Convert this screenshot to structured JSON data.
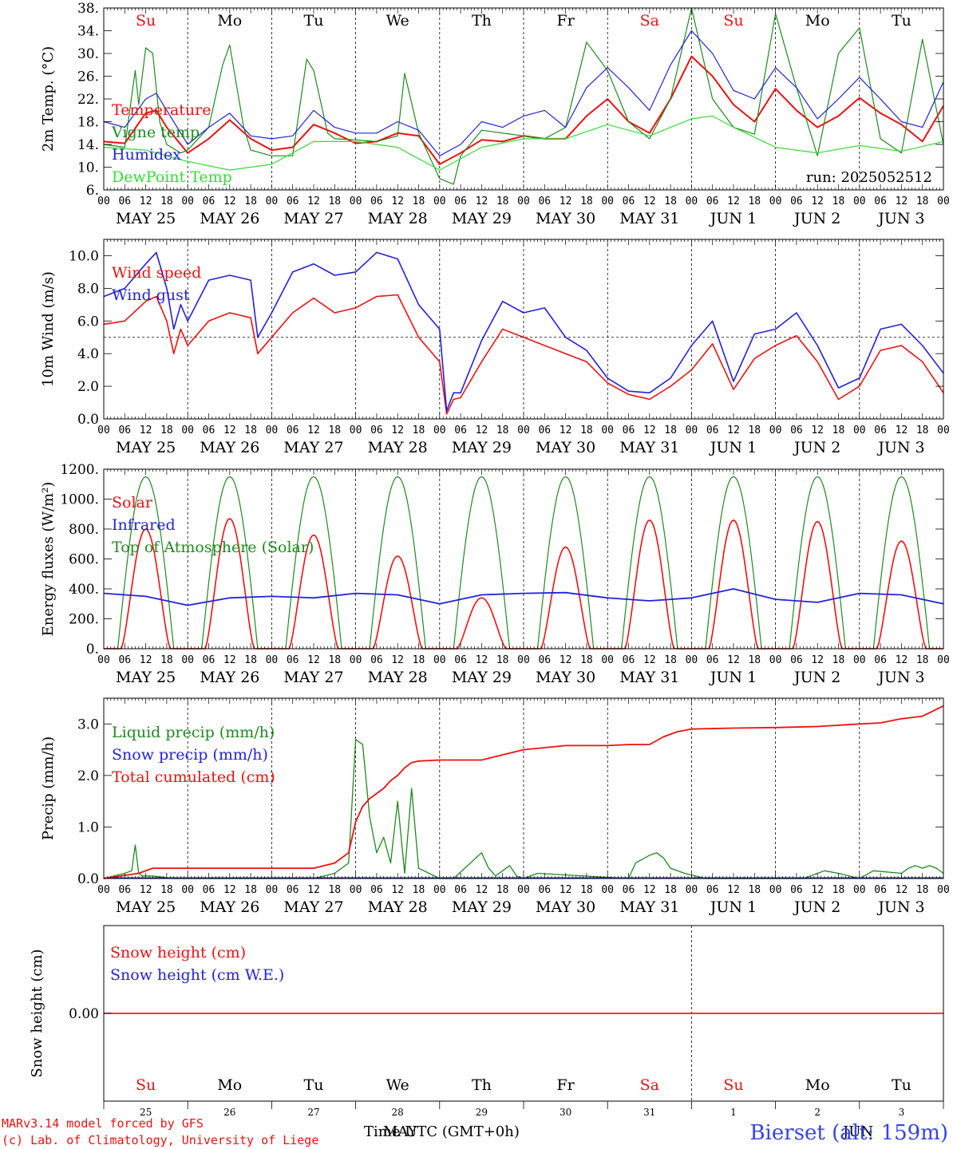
{
  "colors": {
    "red": "#ee1111",
    "green": "#1e8a1e",
    "blue": "#2222dd",
    "lightgreen": "#33dd33",
    "axis": "#000000"
  },
  "hour_labels": [
    "00",
    "06",
    "12",
    "18"
  ],
  "final_hour_label": "00",
  "day_labels": [
    "MAY 25",
    "MAY 26",
    "MAY 27",
    "MAY 28",
    "MAY 29",
    "MAY 30",
    "MAY 31",
    "JUN  1",
    "JUN  2",
    "JUN  3"
  ],
  "weekdays": [
    {
      "label": "Su",
      "color": "red"
    },
    {
      "label": "Mo",
      "color": "black"
    },
    {
      "label": "Tu",
      "color": "black"
    },
    {
      "label": "We",
      "color": "black"
    },
    {
      "label": "Th",
      "color": "black"
    },
    {
      "label": "Fr",
      "color": "black"
    },
    {
      "label": "Sa",
      "color": "red"
    },
    {
      "label": "Su",
      "color": "red"
    },
    {
      "label": "Mo",
      "color": "black"
    },
    {
      "label": "Tu",
      "color": "black"
    }
  ],
  "day_numbers": [
    "25",
    "26",
    "27",
    "28",
    "29",
    "30",
    "31",
    "1",
    "2",
    "3"
  ],
  "footer": {
    "model_line": "MARv3.14 model forced by GFS",
    "credit_line": "(c) Lab. of Climatology, University of Liege",
    "time_axis_label": "Time UTC (GMT+0h)",
    "month_overlay_1": "MAY",
    "month_overlay_2": "JUN",
    "station": "Bierset (alt: 159m)"
  },
  "chart_data": [
    {
      "type": "line",
      "ylabel": "2m Temp. (°C)",
      "ylim": [
        6,
        38
      ],
      "yticks": [
        "6.",
        "10.",
        "14.",
        "18.",
        "22.",
        "26.",
        "30.",
        "34.",
        "38."
      ],
      "grid": "vertical dashed at midnight",
      "annotation": "run: 2025052512",
      "x_units": "hours since 2025-05-25 00 UTC",
      "series": [
        {
          "name": "Temperature",
          "color": "red",
          "x": [
            0,
            6,
            12,
            15,
            18,
            24,
            30,
            36,
            42,
            48,
            54,
            60,
            66,
            72,
            78,
            84,
            90,
            96,
            102,
            108,
            114,
            120,
            126,
            132,
            138,
            144,
            150,
            156,
            162,
            168,
            174,
            180,
            186,
            192,
            198,
            204,
            210,
            216,
            222,
            228,
            234,
            240
          ],
          "y": [
            14.5,
            14.2,
            19.5,
            20,
            17,
            12.5,
            15,
            18.3,
            15,
            13,
            13.5,
            17.5,
            16,
            14.2,
            14.5,
            16,
            15.5,
            10.5,
            12.5,
            14.8,
            14.5,
            15.5,
            15,
            15,
            19,
            22,
            18,
            16,
            22,
            29.5,
            26,
            21,
            18,
            23.8,
            20,
            17,
            19,
            22.2,
            19.5,
            17.5,
            14.5,
            20.8
          ]
        },
        {
          "name": "Vigne temp",
          "color": "green",
          "x": [
            0,
            6,
            9,
            10,
            12,
            14,
            16,
            18,
            22,
            24,
            30,
            34,
            36,
            40,
            42,
            48,
            54,
            58,
            60,
            64,
            66,
            72,
            78,
            84,
            86,
            90,
            96,
            100,
            102,
            108,
            114,
            120,
            126,
            132,
            138,
            144,
            150,
            156,
            162,
            168,
            174,
            180,
            186,
            192,
            198,
            204,
            210,
            216,
            222,
            228,
            234,
            240
          ],
          "y": [
            14,
            13.5,
            27,
            21,
            31,
            30,
            18,
            14,
            12.5,
            13,
            17,
            28,
            31.5,
            17,
            13,
            12,
            12,
            29,
            27,
            16,
            15,
            14.8,
            14.5,
            15.5,
            26.5,
            16,
            8,
            7,
            12,
            16.5,
            16,
            15.5,
            15,
            17,
            32,
            27,
            18,
            15,
            22,
            38,
            22,
            17,
            15.8,
            37,
            24,
            12,
            30,
            34.5,
            15,
            12.5,
            32.5,
            14
          ]
        },
        {
          "name": "Humidex",
          "color": "blue",
          "x": [
            0,
            6,
            12,
            15,
            18,
            24,
            30,
            36,
            42,
            48,
            54,
            60,
            66,
            72,
            78,
            84,
            90,
            96,
            102,
            108,
            114,
            120,
            126,
            132,
            138,
            144,
            150,
            156,
            162,
            168,
            174,
            180,
            186,
            192,
            198,
            204,
            210,
            216,
            222,
            228,
            234,
            240
          ],
          "y": [
            18,
            17,
            22,
            23,
            20,
            14,
            17,
            19.5,
            15.5,
            15,
            15.5,
            20,
            17,
            16,
            16,
            18,
            16.5,
            12,
            14,
            18,
            17,
            19,
            20,
            17,
            24,
            27.5,
            24,
            20,
            28,
            34,
            30,
            23.5,
            22,
            27.5,
            24,
            18.5,
            22,
            25.8,
            22,
            18,
            17,
            25
          ]
        },
        {
          "name": "DewPoint Temp",
          "color": "lightgreen",
          "x": [
            0,
            12,
            24,
            36,
            48,
            60,
            72,
            84,
            96,
            108,
            120,
            132,
            144,
            156,
            168,
            174,
            180,
            192,
            204,
            216,
            228,
            240
          ],
          "y": [
            13.5,
            13,
            11,
            9.5,
            10.5,
            14.5,
            14.5,
            13.5,
            9.5,
            13.5,
            15,
            15,
            17.5,
            15.5,
            18.5,
            19,
            17,
            13.5,
            12.5,
            13.8,
            12.8,
            14.5
          ]
        }
      ]
    },
    {
      "type": "line",
      "ylabel": "10m Wind (m/s)",
      "ylim": [
        0,
        11
      ],
      "yticks": [
        "0.0",
        "2.0",
        "4.0",
        "6.0",
        "8.0",
        "10.0"
      ],
      "reference_line": 5.0,
      "x_units": "hours since 2025-05-25 00 UTC",
      "series": [
        {
          "name": "Wind speed",
          "color": "red",
          "x": [
            0,
            6,
            12,
            15,
            18,
            20,
            22,
            24,
            30,
            36,
            42,
            44,
            48,
            54,
            60,
            66,
            72,
            78,
            84,
            90,
            96,
            98,
            100,
            102,
            108,
            114,
            120,
            126,
            132,
            138,
            144,
            150,
            156,
            162,
            168,
            174,
            180,
            186,
            192,
            198,
            204,
            210,
            216,
            222,
            228,
            234,
            240
          ],
          "y": [
            5.8,
            6,
            7.2,
            7.5,
            6,
            4,
            5.5,
            4.5,
            6,
            6.5,
            6.2,
            4,
            5,
            6.5,
            7.4,
            6.5,
            6.8,
            7.5,
            7.6,
            5,
            3.5,
            0.3,
            1.2,
            1.3,
            3.5,
            5.5,
            5,
            4.5,
            4,
            3.5,
            2.2,
            1.5,
            1.2,
            2,
            3,
            4.6,
            1.8,
            3.7,
            4.5,
            5.1,
            3.5,
            1.2,
            2,
            4.2,
            4.5,
            3.5,
            1.6
          ]
        },
        {
          "name": "Wind gust",
          "color": "blue",
          "x": [
            0,
            6,
            12,
            15,
            18,
            20,
            22,
            24,
            30,
            36,
            42,
            44,
            48,
            54,
            60,
            66,
            72,
            78,
            84,
            90,
            96,
            98,
            100,
            102,
            108,
            114,
            120,
            126,
            132,
            138,
            144,
            150,
            156,
            162,
            168,
            174,
            180,
            186,
            192,
            198,
            204,
            210,
            216,
            222,
            228,
            234,
            240
          ],
          "y": [
            7.5,
            8,
            9.5,
            10.2,
            8,
            5.5,
            7,
            6,
            8.5,
            8.8,
            8.5,
            5,
            6.5,
            9,
            9.5,
            8.8,
            9,
            10.2,
            9.8,
            7,
            5.5,
            0.5,
            1.6,
            1.6,
            4.8,
            7.2,
            6.5,
            6.8,
            5,
            4.2,
            2.5,
            1.7,
            1.6,
            2.5,
            4.5,
            6,
            2.3,
            5.2,
            5.5,
            6.5,
            4.5,
            1.9,
            2.5,
            5.5,
            5.8,
            4.5,
            2.8
          ]
        }
      ]
    },
    {
      "type": "line",
      "ylabel": "Energy fluxes (W/m²)",
      "ylim": [
        0,
        1200
      ],
      "yticks": [
        "0.",
        "200.",
        "400.",
        "600.",
        "800.",
        "1000.",
        "1200."
      ],
      "x_units": "hours since 2025-05-25 00 UTC",
      "toa_peak": 1150,
      "solar_daily_peaks": [
        800,
        870,
        760,
        620,
        340,
        680,
        860,
        860,
        850,
        720
      ],
      "series": [
        {
          "name": "Solar",
          "color": "red"
        },
        {
          "name": "Infrared",
          "color": "blue",
          "x": [
            0,
            12,
            24,
            36,
            48,
            60,
            72,
            84,
            96,
            108,
            120,
            132,
            144,
            156,
            168,
            180,
            192,
            204,
            216,
            228,
            240
          ],
          "y": [
            370,
            350,
            290,
            340,
            350,
            340,
            370,
            360,
            300,
            360,
            370,
            375,
            340,
            320,
            340,
            400,
            330,
            310,
            370,
            360,
            300
          ]
        },
        {
          "name": "Top of Atmosphere (Solar)",
          "color": "green"
        }
      ]
    },
    {
      "type": "line",
      "ylabel": "Precip (mm/h)",
      "ylim": [
        0,
        3.5
      ],
      "yticks": [
        "0.0",
        "1.0",
        "2.0",
        "3.0"
      ],
      "x_units": "hours since 2025-05-25 00 UTC",
      "series": [
        {
          "name": "Liquid precip (mm/h)",
          "color": "green",
          "x": [
            0,
            6,
            8,
            9,
            10,
            11,
            14,
            20,
            60,
            66,
            70,
            72,
            74,
            76,
            78,
            80,
            82,
            84,
            86,
            88,
            90,
            96,
            100,
            108,
            110,
            112,
            116,
            118,
            120,
            124,
            150,
            152,
            156,
            158,
            160,
            162,
            166,
            172,
            200,
            202,
            204,
            206,
            210,
            216,
            220,
            228,
            230,
            232,
            234,
            236,
            238,
            240
          ],
          "y": [
            0,
            0.1,
            0.15,
            0.65,
            0.1,
            0.05,
            0.05,
            0,
            0,
            0.1,
            0.3,
            2.7,
            2.6,
            1.2,
            0.5,
            0.8,
            0.3,
            1.5,
            0.1,
            1.75,
            0.2,
            0,
            0,
            0.5,
            0.2,
            0.05,
            0.25,
            0.05,
            0,
            0.1,
            0,
            0.3,
            0.45,
            0.5,
            0.4,
            0.2,
            0.1,
            0,
            0,
            0.05,
            0.1,
            0.15,
            0.1,
            0,
            0.15,
            0.1,
            0.2,
            0.25,
            0.2,
            0.25,
            0.2,
            0.1
          ]
        },
        {
          "name": "Snow precip (mm/h)",
          "color": "blue"
        },
        {
          "name": "Total cumulated (cm)",
          "color": "red",
          "x": [
            0,
            10,
            14,
            24,
            48,
            60,
            66,
            70,
            72,
            74,
            76,
            78,
            80,
            82,
            84,
            86,
            88,
            90,
            96,
            108,
            114,
            120,
            132,
            144,
            150,
            156,
            160,
            164,
            168,
            180,
            192,
            204,
            216,
            222,
            228,
            234,
            240
          ],
          "y": [
            0,
            0.1,
            0.2,
            0.2,
            0.2,
            0.2,
            0.3,
            0.5,
            1.1,
            1.4,
            1.55,
            1.65,
            1.75,
            1.9,
            2.0,
            2.15,
            2.25,
            2.28,
            2.3,
            2.3,
            2.4,
            2.5,
            2.58,
            2.58,
            2.6,
            2.6,
            2.75,
            2.85,
            2.9,
            2.92,
            2.93,
            2.95,
            3.0,
            3.02,
            3.1,
            3.15,
            3.35
          ]
        }
      ]
    },
    {
      "type": "line",
      "ylabel": "Snow height (cm)",
      "yticks": [
        "0.00"
      ],
      "series": [
        {
          "name": "Snow height (cm)",
          "color": "red",
          "x": [
            0,
            240
          ],
          "y": [
            0,
            0
          ]
        },
        {
          "name": "Snow height (cm W.E.)",
          "color": "blue",
          "x": [
            0,
            240
          ],
          "y": [
            0,
            0
          ]
        }
      ]
    }
  ]
}
